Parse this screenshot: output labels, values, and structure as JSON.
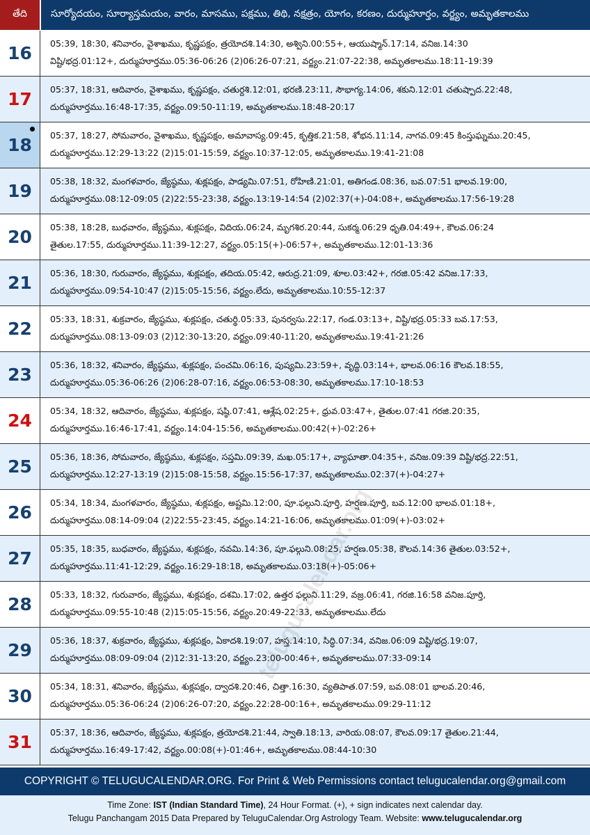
{
  "header": {
    "date_label": "తేది",
    "columns_label": "సూర్యోదయం, సూర్యాస్తమయం, వారం, మాసము, పక్షము, తిథి, నక్షత్రం, యోగం, కరణం, దుర్ముహూర్తం, వర్జ్యం, అమృతకాలము"
  },
  "colors": {
    "header_bg": "#0d3a6b",
    "date_header_bg": "#a51c1c",
    "sunday": "#cc1111",
    "weekday": "#17406e",
    "alt_row": "#e3effb",
    "today_bg": "#b9d7ef"
  },
  "rows": [
    {
      "day": "16",
      "line1": "05:39, 18:30, శనివారం, వైశాఖము, కృష్ణపక్షం, త్రయోదశి.14:30, అశ్విని.00:55+, ఆయుష్మాన్.17:14, వనిజ.14:30",
      "line2": "విష్టి/భద్ర.01:12+, దుర్ముహూర్తము.05:36-06:26 (2)06:26-07:21, వర్జ్యం.21:07-22:38, అమృతకాలము.18:11-19:39"
    },
    {
      "day": "17",
      "sunday": true,
      "line1": "05:37, 18:31, ఆదివారం, వైశాఖము, కృష్ణపక్షం, చతుర్దశి.12:01, భరణి.23:11, సౌభాగ్య.14:06, శకుని.12:01 చతుష్పాద.22:48,",
      "line2": "దుర్ముహూర్తము.16:48-17:35, వర్జ్యం.09:50-11:19, అమృతకాలము.18:48-20:17"
    },
    {
      "day": "18",
      "today": true,
      "line1": "05:37, 18:27, సోమవారం, వైశాఖము, కృష్ణపక్షం, అమావాస్య.09:45, కృత్తిక.21:58, శోభన.11:14, నాగవ.09:45 కింస్తుఘ్నము.20:45,",
      "line2": "దుర్ముహూర్తము.12:29-13:22 (2)15:01-15:59, వర్జ్యం.10:37-12:05, అమృతకాలము.19:41-21:08"
    },
    {
      "day": "19",
      "line1": "05:38, 18:32, మంగళవారం, జ్యేష్ఠము, శుక్లపక్షం, పాడ్యమి.07:51, రోహిణి.21:01, అతిగండ.08:36, బవ.07:51 భాలవ.19:00,",
      "line2": "దుర్ముహూర్తము.08:12-09:05 (2)22:55-23:38, వర్జ్యం.13:19-14:54 (2)02:37(+)-04:08+, అమృతకాలము.17:56-19:28"
    },
    {
      "day": "20",
      "line1": "05:38, 18:28, బుధవారం, జ్యేష్ఠము, శుక్లపక్షం, విదియ.06:24, మృగశిర.20:44, సుకర్మ.06:29 ధృతి.04:49+, కౌలవ.06:24",
      "line2": "తైతుల.17:55, దుర్ముహూర్తము.11:39-12:27, వర్జ్యం.05:15(+)-06:57+, అమృతకాలము.12:01-13:36"
    },
    {
      "day": "21",
      "line1": "05:36, 18:30, గురువారం, జ్యేష్ఠము, శుక్లపక్షం, తదియ.05:42, ఆరుద్ర.21:09, శూల.03:42+, గరజి.05:42 వనిజ.17:33,",
      "line2": "దుర్ముహూర్తము.09:54-10:47 (2)15:05-15:56, వర్జ్యం.లేదు, అమృతకాలము.10:55-12:37"
    },
    {
      "day": "22",
      "line1": "05:33, 18:31, శుక్రవారం, జ్యేష్ఠము, శుక్లపక్షం, చతుర్థి.05:33, పునర్వసు.22:17, గండ.03:13+, విష్టి/భద్ర.05:33 బవ.17:53,",
      "line2": "దుర్ముహూర్తము.08:13-09:03 (2)12:30-13:20, వర్జ్యం.09:40-11:20, అమృతకాలము.19:41-21:26"
    },
    {
      "day": "23",
      "line1": "05:36, 18:32, శనివారం, జ్యేష్ఠము, శుక్లపక్షం, పంచమి.06:16, పుష్యమి.23:59+, వృద్ధి.03:14+, భాలవ.06:16 కౌలవ.18:55,",
      "line2": "దుర్ముహూర్తము.05:36-06:26 (2)06:28-07:16, వర్జ్యం.06:53-08:30, అమృతకాలము.17:10-18:53"
    },
    {
      "day": "24",
      "sunday": true,
      "line1": "05:34, 18:32, ఆదివారం, జ్యేష్ఠము, శుక్లపక్షం, షష్ఠి.07:41, ఆశ్లేష.02:25+, ధ్రువ.03:47+, తైతుల.07:41 గరజి.20:35,",
      "line2": "దుర్ముహూర్తము.16:46-17:41, వర్జ్యం.14:04-15:56, అమృతకాలము.00:42(+)-02:26+"
    },
    {
      "day": "25",
      "line1": "05:36, 18:36, సోమవారం, జ్యేష్ఠము, శుక్లపక్షం, సప్తమి.09:39, మఖ.05:17+, వ్యాఘాతా.04:35+, వనిజ.09:39 విష్టి/భద్ర.22:51,",
      "line2": "దుర్ముహూర్తము.12:27-13:19 (2)15:08-15:58, వర్జ్యం.15:56-17:37, అమృతకాలము.02:37(+)-04:27+"
    },
    {
      "day": "26",
      "line1": "05:34, 18:34, మంగళవారం, జ్యేష్ఠము, శుక్లపక్షం, అష్టమి.12:00, పూ.ఫల్గుని.పూర్తి, హర్షణ.పూర్తి, బవ.12:00 భాలవ.01:18+,",
      "line2": "దుర్ముహూర్తము.08:14-09:04 (2)22:55-23:45, వర్జ్యం.14:21-16:06, అమృతకాలము.01:09(+)-03:02+"
    },
    {
      "day": "27",
      "line1": "05:35, 18:35, బుధవారం, జ్యేష్ఠము, శుక్లపక్షం, నవమి.14:36, పూ.ఫల్గుని.08:25, హర్షణ.05:38, కౌలవ.14:36 తైతుల.03:52+,",
      "line2": "దుర్ముహూర్తము.11:41-12:29, వర్జ్యం.16:29-18:18, అమృతకాలము.03:18(+)-05:06+"
    },
    {
      "day": "28",
      "line1": "05:33, 18:32, గురువారం, జ్యేష్ఠము, శుక్లపక్షం, దశమి.17:02, ఉత్తర ఫల్గుని.11:29, వజ్ర.06:41, గరజి.16:58 వనిజ.పూర్తి,",
      "line2": "దుర్ముహూర్తము.09:55-10:48 (2)15:05-15:56, వర్జ్యం.20:49-22:33, అమృతకాలము.లేదు"
    },
    {
      "day": "29",
      "line1": "05:36, 18:37, శుక్రవారం, జ్యేష్ఠము, శుక్లపక్షం, ఏకాదశి.19:07, హస్త.14:10, సిద్ధి.07:34, వనిజ.06:09 విష్టి/భద్ర.19:07,",
      "line2": "దుర్ముహూర్తము.08:09-09:04 (2)12:31-13:20, వర్జ్యం.23:00-00:46+, అమృతకాలము.07:33-09:14"
    },
    {
      "day": "30",
      "line1": "05:34, 18:31, శనివారం, జ్యేష్ఠము, శుక్లపక్షం, ద్వాదశి.20:46, చిత్తా.16:30, వ్యతిపాత.07:59, బవ.08:01 భాలవ.20:46,",
      "line2": "దుర్ముహూర్తము.05:36-06:24 (2)06:26-07:20, వర్జ్యం.22:28-00:16+, అమృతకాలము.09:29-11:12"
    },
    {
      "day": "31",
      "sunday": true,
      "line1": "05:37, 18:36, ఆదివారం, జ్యేష్ఠము, శుక్లపక్షం, త్రయోదశి.21:44, స్వాతి.18:13, వారియ.08:07, కౌలవ.09:17 తైతుల.21:44,",
      "line2": "దుర్ముహూర్తము.16:49-17:42, వర్జ్యం.00:08(+)-01:46+, అమృతకాలము.08:44-10:30"
    }
  ],
  "footer": {
    "copyright": "COPYRIGHT © TELUGUCALENDAR.ORG. For Print & Web Permissions contact telugucalendar.org@gmail.com",
    "tz_prefix": "Time Zone: ",
    "tz_bold": "IST (Indian Standard Time)",
    "tz_suffix": ", 24 Hour Format. (+), + sign indicates next calendar day.",
    "credit_prefix": "Telugu Panchangam 2015 Data Prepared by TeluguCalendar.Org Astrology Team. Website: ",
    "credit_site": "www.telugucalendar.org"
  },
  "watermark": "telugucalendar.org"
}
